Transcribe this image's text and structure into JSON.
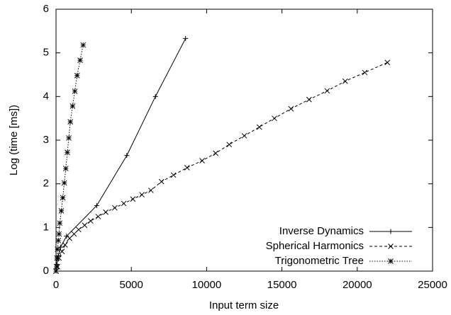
{
  "chart_data": {
    "type": "line",
    "x_label": "Input term size",
    "y_label": "Log (time [ms])",
    "xlim": [
      0,
      25000
    ],
    "xticks": [
      0,
      5000,
      10000,
      15000,
      20000,
      25000
    ],
    "ylim": [
      0,
      6
    ],
    "yticks": [
      0,
      1,
      2,
      3,
      4,
      5,
      6
    ],
    "grid": false,
    "legend": "bottom-right",
    "series": [
      {
        "name": "Inverse Dynamics",
        "color": "#000000",
        "dash": "solid",
        "marker": "plus",
        "x": [
          0,
          50,
          150,
          300,
          700,
          2700,
          4700,
          6600,
          8600
        ],
        "values": [
          0,
          0.15,
          0.35,
          0.55,
          0.8,
          1.5,
          2.65,
          4.0,
          5.33
        ]
      },
      {
        "name": "Spherical Harmonics",
        "color": "#000000",
        "dash": "dashed",
        "marker": "cross",
        "x": [
          0,
          100,
          200,
          400,
          600,
          900,
          1200,
          1500,
          1900,
          2300,
          2800,
          3300,
          3900,
          4500,
          5100,
          5700,
          6300,
          7000,
          7800,
          8700,
          9700,
          10600,
          11500,
          12500,
          13500,
          14500,
          15600,
          16800,
          18000,
          19200,
          20500,
          22000
        ],
        "values": [
          0,
          0.1,
          0.3,
          0.45,
          0.6,
          0.75,
          0.85,
          0.95,
          1.05,
          1.15,
          1.25,
          1.35,
          1.45,
          1.55,
          1.65,
          1.75,
          1.85,
          2.05,
          2.2,
          2.37,
          2.53,
          2.7,
          2.9,
          3.1,
          3.3,
          3.5,
          3.72,
          3.93,
          4.13,
          4.35,
          4.55,
          4.78
        ]
      },
      {
        "name": "Trigonometric Tree",
        "color": "#000000",
        "dash": "dotted",
        "marker": "star",
        "x": [
          0,
          30,
          60,
          100,
          150,
          200,
          250,
          350,
          450,
          550,
          650,
          750,
          850,
          950,
          1100,
          1250,
          1400,
          1600,
          1800
        ],
        "values": [
          0,
          0.1,
          0.3,
          0.5,
          0.7,
          0.85,
          1.1,
          1.38,
          1.68,
          2.02,
          2.35,
          2.72,
          3.05,
          3.42,
          3.78,
          4.12,
          4.48,
          4.83,
          5.18
        ]
      }
    ]
  }
}
